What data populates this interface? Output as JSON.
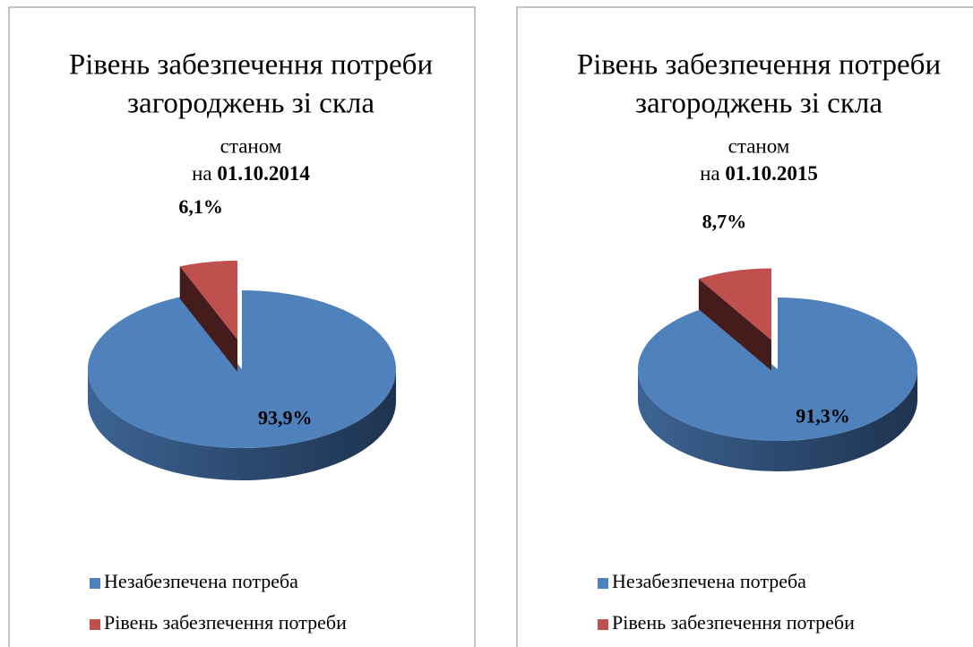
{
  "chart_data": [
    {
      "type": "pie",
      "title": [
        "Рівень забезпечення потреби",
        "загороджень зі скла"
      ],
      "subtitle": "станом",
      "date_prefix": "на",
      "date": "01.10.2014",
      "categories": [
        "Незабезпечена потреба",
        "Рівень забезпечення потреби"
      ],
      "values": [
        93.9,
        6.1
      ],
      "value_labels": [
        "93,9%",
        "6,1%"
      ],
      "colors": [
        "#4f81bd",
        "#c0504d"
      ]
    },
    {
      "type": "pie",
      "title": [
        "Рівень забезпечення потреби",
        "загороджень зі скла"
      ],
      "subtitle": "станом",
      "date_prefix": "на",
      "date": "01.10.2015",
      "categories": [
        "Незабезпечена потреба",
        "Рівень забезпечення потреби"
      ],
      "values": [
        91.3,
        8.7
      ],
      "value_labels": [
        "91,3%",
        "8,7%"
      ],
      "colors": [
        "#4f81bd",
        "#c0504d"
      ]
    }
  ]
}
